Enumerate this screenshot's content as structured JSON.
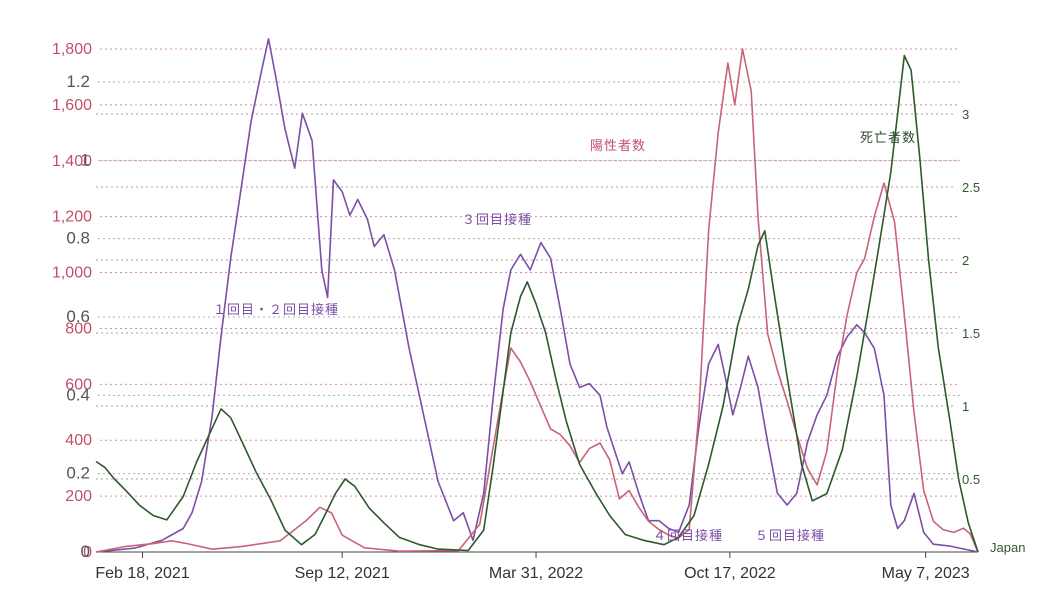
{
  "chart_data": {
    "type": "line",
    "title": "",
    "x_tick_labels": [
      "Feb 18, 2021",
      "Sep 12, 2021",
      "Mar 31, 2022",
      "Oct 17, 2022",
      "May 7, 2023"
    ],
    "x_ticks_dates": [
      "2021-02-18",
      "2021-09-12",
      "2022-03-31",
      "2022-10-17",
      "2023-05-07"
    ],
    "x_range": [
      "2021-01-01",
      "2023-06-30"
    ],
    "y_left_pink": {
      "ticks": [
        0,
        200,
        400,
        600,
        800,
        1000,
        1200,
        1400,
        1600,
        1800
      ],
      "labels": [
        "0",
        "200",
        "400",
        "600",
        "800",
        "1,000",
        "1,200",
        "1,400",
        "1,600",
        "1,800"
      ],
      "color": "#c0506a"
    },
    "y_left_grey": {
      "ticks": [
        0,
        0.2,
        0.4,
        0.6,
        0.8,
        1,
        1.2
      ],
      "labels": [
        "0",
        "0.2",
        "0.4",
        "0.6",
        "0.8",
        "1",
        "1.2"
      ],
      "color": "#555555"
    },
    "y_right_green": {
      "ticks": [
        0.5,
        1,
        1.5,
        2,
        2.5,
        3
      ],
      "labels": [
        "0.5",
        "1",
        "1.5",
        "2",
        "2.5",
        "3"
      ],
      "color": "#2e5a2e"
    },
    "grid": true,
    "annotations": {
      "dose12": "１回目・２回目接種",
      "dose3": "３回目接種",
      "cases": "陽性者数",
      "deaths": "死亡者数",
      "dose4": "４回目接種",
      "dose5": "５回目接種",
      "country": "Japan"
    },
    "series": [
      {
        "color": "#7b4fa6",
        "axis": "grey",
        "points": [
          [
            "2021-01-01",
            0
          ],
          [
            "2021-02-10",
            0.01
          ],
          [
            "2021-03-10",
            0.03
          ],
          [
            "2021-04-01",
            0.06
          ],
          [
            "2021-04-10",
            0.1
          ],
          [
            "2021-04-20",
            0.18
          ],
          [
            "2021-05-01",
            0.35
          ],
          [
            "2021-05-10",
            0.55
          ],
          [
            "2021-05-20",
            0.75
          ],
          [
            "2021-06-01",
            0.95
          ],
          [
            "2021-06-10",
            1.1
          ],
          [
            "2021-06-20",
            1.22
          ],
          [
            "2021-06-28",
            1.31
          ],
          [
            "2021-07-05",
            1.22
          ],
          [
            "2021-07-15",
            1.08
          ],
          [
            "2021-07-25",
            0.98
          ],
          [
            "2021-08-02",
            1.12
          ],
          [
            "2021-08-12",
            1.05
          ],
          [
            "2021-08-22",
            0.72
          ],
          [
            "2021-08-28",
            0.65
          ],
          [
            "2021-09-03",
            0.95
          ],
          [
            "2021-09-12",
            0.92
          ],
          [
            "2021-09-20",
            0.86
          ],
          [
            "2021-09-28",
            0.9
          ],
          [
            "2021-10-08",
            0.85
          ],
          [
            "2021-10-15",
            0.78
          ],
          [
            "2021-10-25",
            0.81
          ],
          [
            "2021-11-05",
            0.72
          ],
          [
            "2021-11-20",
            0.52
          ],
          [
            "2021-12-05",
            0.35
          ],
          [
            "2021-12-20",
            0.18
          ],
          [
            "2022-01-05",
            0.08
          ],
          [
            "2022-01-15",
            0.1
          ],
          [
            "2022-01-25",
            0.03
          ],
          [
            "2022-02-05",
            0.15
          ],
          [
            "2022-02-15",
            0.4
          ],
          [
            "2022-02-25",
            0.62
          ],
          [
            "2022-03-05",
            0.72
          ],
          [
            "2022-03-15",
            0.76
          ],
          [
            "2022-03-25",
            0.72
          ],
          [
            "2022-04-05",
            0.79
          ],
          [
            "2022-04-15",
            0.75
          ],
          [
            "2022-04-25",
            0.62
          ],
          [
            "2022-05-05",
            0.48
          ],
          [
            "2022-05-15",
            0.42
          ],
          [
            "2022-05-25",
            0.43
          ],
          [
            "2022-06-05",
            0.4
          ],
          [
            "2022-06-12",
            0.32
          ],
          [
            "2022-06-20",
            0.26
          ],
          [
            "2022-06-28",
            0.2
          ],
          [
            "2022-07-05",
            0.23
          ],
          [
            "2022-07-15",
            0.15
          ],
          [
            "2022-07-25",
            0.08
          ],
          [
            "2022-08-05",
            0.08
          ],
          [
            "2022-08-15",
            0.06
          ],
          [
            "2022-08-25",
            0.05
          ],
          [
            "2022-09-05",
            0.12
          ],
          [
            "2022-09-15",
            0.32
          ],
          [
            "2022-09-25",
            0.48
          ],
          [
            "2022-10-05",
            0.53
          ],
          [
            "2022-10-12",
            0.45
          ],
          [
            "2022-10-20",
            0.35
          ],
          [
            "2022-10-28",
            0.42
          ],
          [
            "2022-11-05",
            0.5
          ],
          [
            "2022-11-15",
            0.42
          ],
          [
            "2022-11-25",
            0.28
          ],
          [
            "2022-12-05",
            0.15
          ],
          [
            "2022-12-15",
            0.12
          ],
          [
            "2022-12-25",
            0.15
          ],
          [
            "2023-01-05",
            0.28
          ],
          [
            "2023-01-15",
            0.35
          ],
          [
            "2023-01-25",
            0.4
          ],
          [
            "2023-02-05",
            0.5
          ],
          [
            "2023-02-15",
            0.55
          ],
          [
            "2023-02-25",
            0.58
          ],
          [
            "2023-03-05",
            0.56
          ],
          [
            "2023-03-15",
            0.52
          ],
          [
            "2023-03-25",
            0.4
          ],
          [
            "2023-04-01",
            0.12
          ],
          [
            "2023-04-08",
            0.06
          ],
          [
            "2023-04-15",
            0.08
          ],
          [
            "2023-04-25",
            0.15
          ],
          [
            "2023-05-05",
            0.05
          ],
          [
            "2023-05-15",
            0.02
          ],
          [
            "2023-06-01",
            0.015
          ],
          [
            "2023-06-30",
            0
          ]
        ]
      },
      {
        "color": "#c86478",
        "axis": "pink",
        "points": [
          [
            "2021-01-01",
            0
          ],
          [
            "2021-02-01",
            20
          ],
          [
            "2021-03-01",
            30
          ],
          [
            "2021-03-20",
            40
          ],
          [
            "2021-04-05",
            30
          ],
          [
            "2021-05-01",
            10
          ],
          [
            "2021-06-01",
            20
          ],
          [
            "2021-07-10",
            40
          ],
          [
            "2021-08-05",
            110
          ],
          [
            "2021-08-20",
            160
          ],
          [
            "2021-09-01",
            140
          ],
          [
            "2021-09-12",
            60
          ],
          [
            "2021-10-05",
            15
          ],
          [
            "2021-11-10",
            3
          ],
          [
            "2022-01-10",
            5
          ],
          [
            "2022-02-01",
            100
          ],
          [
            "2022-02-15",
            380
          ],
          [
            "2022-02-25",
            580
          ],
          [
            "2022-03-05",
            730
          ],
          [
            "2022-03-15",
            680
          ],
          [
            "2022-03-25",
            610
          ],
          [
            "2022-04-05",
            520
          ],
          [
            "2022-04-15",
            440
          ],
          [
            "2022-04-25",
            420
          ],
          [
            "2022-05-05",
            380
          ],
          [
            "2022-05-15",
            320
          ],
          [
            "2022-05-25",
            370
          ],
          [
            "2022-06-05",
            390
          ],
          [
            "2022-06-15",
            330
          ],
          [
            "2022-06-25",
            190
          ],
          [
            "2022-07-05",
            220
          ],
          [
            "2022-07-15",
            160
          ],
          [
            "2022-07-25",
            110
          ],
          [
            "2022-08-05",
            80
          ],
          [
            "2022-08-15",
            60
          ],
          [
            "2022-08-25",
            50
          ],
          [
            "2022-09-05",
            80
          ],
          [
            "2022-09-15",
            500
          ],
          [
            "2022-09-25",
            1150
          ],
          [
            "2022-10-05",
            1500
          ],
          [
            "2022-10-15",
            1750
          ],
          [
            "2022-10-22",
            1600
          ],
          [
            "2022-10-30",
            1800
          ],
          [
            "2022-11-08",
            1650
          ],
          [
            "2022-11-15",
            1200
          ],
          [
            "2022-11-25",
            780
          ],
          [
            "2022-12-05",
            650
          ],
          [
            "2022-12-15",
            540
          ],
          [
            "2022-12-25",
            420
          ],
          [
            "2023-01-05",
            300
          ],
          [
            "2023-01-15",
            240
          ],
          [
            "2023-01-25",
            360
          ],
          [
            "2023-02-05",
            650
          ],
          [
            "2023-02-15",
            850
          ],
          [
            "2023-02-25",
            1000
          ],
          [
            "2023-03-05",
            1050
          ],
          [
            "2023-03-15",
            1200
          ],
          [
            "2023-03-25",
            1320
          ],
          [
            "2023-04-05",
            1180
          ],
          [
            "2023-04-15",
            850
          ],
          [
            "2023-04-25",
            500
          ],
          [
            "2023-05-05",
            220
          ],
          [
            "2023-05-15",
            110
          ],
          [
            "2023-05-25",
            80
          ],
          [
            "2023-06-05",
            70
          ],
          [
            "2023-06-15",
            85
          ],
          [
            "2023-06-22",
            65
          ],
          [
            "2023-06-30",
            0
          ]
        ]
      },
      {
        "color": "#2d5a2d",
        "axis": "green",
        "points": [
          [
            "2021-01-01",
            0.62
          ],
          [
            "2021-01-10",
            0.58
          ],
          [
            "2021-01-20",
            0.5
          ],
          [
            "2021-02-01",
            0.42
          ],
          [
            "2021-02-15",
            0.32
          ],
          [
            "2021-03-01",
            0.25
          ],
          [
            "2021-03-15",
            0.22
          ],
          [
            "2021-04-01",
            0.38
          ],
          [
            "2021-04-15",
            0.62
          ],
          [
            "2021-05-01",
            0.85
          ],
          [
            "2021-05-10",
            0.98
          ],
          [
            "2021-05-20",
            0.92
          ],
          [
            "2021-06-01",
            0.75
          ],
          [
            "2021-06-15",
            0.55
          ],
          [
            "2021-07-01",
            0.35
          ],
          [
            "2021-07-15",
            0.15
          ],
          [
            "2021-08-01",
            0.05
          ],
          [
            "2021-08-15",
            0.12
          ],
          [
            "2021-08-25",
            0.25
          ],
          [
            "2021-09-05",
            0.4
          ],
          [
            "2021-09-15",
            0.5
          ],
          [
            "2021-09-25",
            0.45
          ],
          [
            "2021-10-10",
            0.3
          ],
          [
            "2021-10-25",
            0.2
          ],
          [
            "2021-11-10",
            0.1
          ],
          [
            "2021-12-01",
            0.05
          ],
          [
            "2021-12-20",
            0.02
          ],
          [
            "2022-01-20",
            0.01
          ],
          [
            "2022-02-05",
            0.15
          ],
          [
            "2022-02-15",
            0.6
          ],
          [
            "2022-02-25",
            1.1
          ],
          [
            "2022-03-05",
            1.5
          ],
          [
            "2022-03-15",
            1.75
          ],
          [
            "2022-03-22",
            1.85
          ],
          [
            "2022-03-31",
            1.7
          ],
          [
            "2022-04-10",
            1.5
          ],
          [
            "2022-04-20",
            1.2
          ],
          [
            "2022-05-01",
            0.9
          ],
          [
            "2022-05-15",
            0.6
          ],
          [
            "2022-06-01",
            0.4
          ],
          [
            "2022-06-15",
            0.25
          ],
          [
            "2022-07-01",
            0.12
          ],
          [
            "2022-07-20",
            0.08
          ],
          [
            "2022-08-10",
            0.05
          ],
          [
            "2022-08-25",
            0.1
          ],
          [
            "2022-09-10",
            0.25
          ],
          [
            "2022-09-25",
            0.6
          ],
          [
            "2022-10-10",
            1.0
          ],
          [
            "2022-10-25",
            1.55
          ],
          [
            "2022-11-05",
            1.8
          ],
          [
            "2022-11-15",
            2.1
          ],
          [
            "2022-11-22",
            2.2
          ],
          [
            "2022-12-01",
            1.8
          ],
          [
            "2022-12-15",
            1.2
          ],
          [
            "2022-12-30",
            0.6
          ],
          [
            "2023-01-10",
            0.35
          ],
          [
            "2023-01-25",
            0.4
          ],
          [
            "2023-02-10",
            0.7
          ],
          [
            "2023-02-25",
            1.2
          ],
          [
            "2023-03-10",
            1.7
          ],
          [
            "2023-03-20",
            2.1
          ],
          [
            "2023-04-01",
            2.6
          ],
          [
            "2023-04-08",
            3.0
          ],
          [
            "2023-04-15",
            3.4
          ],
          [
            "2023-04-22",
            3.3
          ],
          [
            "2023-05-01",
            2.7
          ],
          [
            "2023-05-10",
            2.0
          ],
          [
            "2023-05-20",
            1.4
          ],
          [
            "2023-06-01",
            0.9
          ],
          [
            "2023-06-10",
            0.5
          ],
          [
            "2023-06-20",
            0.2
          ],
          [
            "2023-06-30",
            0
          ]
        ]
      }
    ]
  }
}
